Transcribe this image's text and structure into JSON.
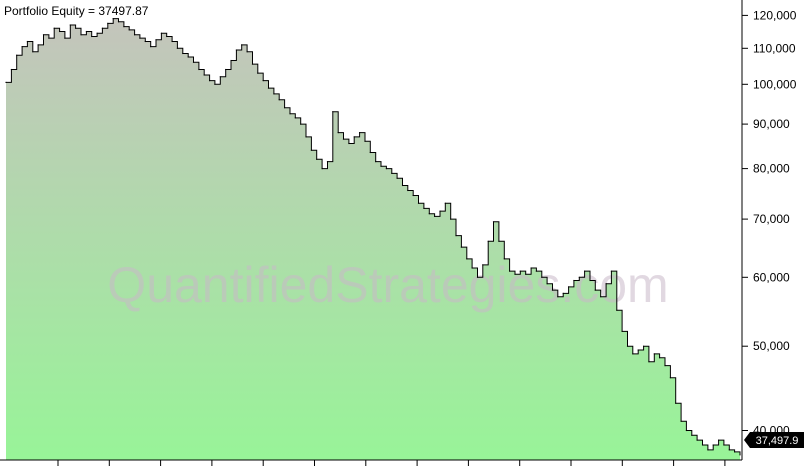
{
  "chart_data": {
    "type": "area",
    "title": "Portfolio Equity = 37497.87",
    "y_scale": "log",
    "ylim": [
      37000,
      125000
    ],
    "y_ticks": [
      {
        "value": 40000,
        "label": "40,000"
      },
      {
        "value": 50000,
        "label": "50,000"
      },
      {
        "value": 60000,
        "label": "60,000"
      },
      {
        "value": 70000,
        "label": "70,000"
      },
      {
        "value": 80000,
        "label": "80,000"
      },
      {
        "value": 90000,
        "label": "90,000"
      },
      {
        "value": 100000,
        "label": "100,000"
      },
      {
        "value": 110000,
        "label": "110,000"
      },
      {
        "value": 120000,
        "label": "120,000"
      }
    ],
    "last_value_label": "37,497.9",
    "watermark": "QuantifiedStrategies.com",
    "series": [
      {
        "values": [
          100500,
          104000,
          108000,
          110500,
          112000,
          109000,
          111000,
          114000,
          113000,
          116000,
          115000,
          113000,
          117000,
          116000,
          114000,
          115000,
          113500,
          114500,
          116000,
          117500,
          119000,
          118000,
          116500,
          115500,
          114000,
          113000,
          112000,
          110500,
          112500,
          114500,
          113500,
          112000,
          110000,
          108500,
          107500,
          106000,
          104000,
          102500,
          101000,
          100000,
          102000,
          104000,
          106500,
          109500,
          111000,
          109000,
          105500,
          103000,
          101000,
          99000,
          97500,
          96000,
          94000,
          92500,
          91500,
          90000,
          87000,
          84000,
          82000,
          80000,
          81500,
          93000,
          88000,
          86500,
          85500,
          87000,
          88000,
          86000,
          83500,
          81500,
          80500,
          80000,
          79000,
          78000,
          76500,
          75500,
          74500,
          73000,
          72000,
          71000,
          70500,
          71500,
          73000,
          70000,
          67000,
          65000,
          63000,
          61500,
          60000,
          62000,
          66000,
          69500,
          66000,
          63000,
          61000,
          60500,
          61000,
          60500,
          61500,
          61000,
          60000,
          59000,
          58000,
          57000,
          57500,
          58500,
          59500,
          60000,
          61000,
          59500,
          58000,
          57000,
          59000,
          61000,
          55000,
          52000,
          50000,
          49000,
          49500,
          50000,
          48000,
          49000,
          48500,
          47500,
          46000,
          43000,
          41000,
          40000,
          39500,
          39000,
          38500,
          38000,
          38500,
          39000,
          38500,
          38000,
          37800,
          37497.87
        ]
      }
    ]
  }
}
